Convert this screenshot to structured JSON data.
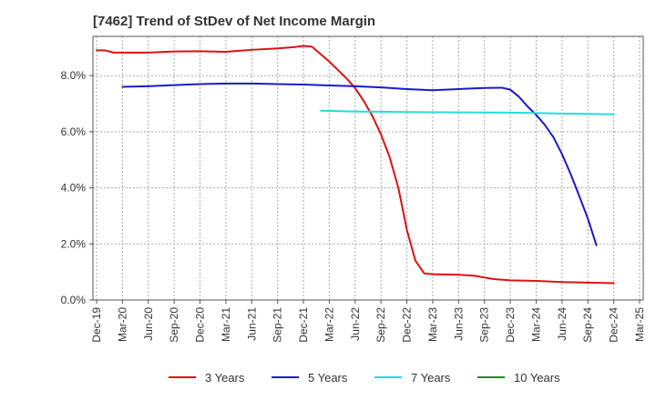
{
  "chart_data": {
    "type": "line",
    "title": "[7462]  Trend of StDev of Net Income Margin",
    "xlabel": "",
    "ylabel": "",
    "ylim": [
      0,
      9.4
    ],
    "y_ticks": [
      "0.0%",
      "2.0%",
      "4.0%",
      "6.0%",
      "8.0%"
    ],
    "y_tick_values": [
      0,
      2,
      4,
      6,
      8
    ],
    "x_tick_labels": [
      "Dec-19",
      "Mar-20",
      "Jun-20",
      "Sep-20",
      "Dec-20",
      "Mar-21",
      "Jun-21",
      "Sep-21",
      "Dec-21",
      "Mar-22",
      "Jun-22",
      "Sep-22",
      "Dec-22",
      "Mar-23",
      "Jun-23",
      "Sep-23",
      "Dec-23",
      "Mar-24",
      "Jun-24",
      "Sep-24",
      "Dec-24",
      "Mar-25"
    ],
    "grid": true,
    "legend_position": "bottom",
    "series": [
      {
        "name": "3 Years",
        "color": "#dd1111",
        "points": [
          [
            0,
            8.9
          ],
          [
            0.33,
            8.9
          ],
          [
            0.67,
            8.82
          ],
          [
            1,
            8.82
          ],
          [
            2,
            8.82
          ],
          [
            3,
            8.86
          ],
          [
            4,
            8.87
          ],
          [
            5,
            8.85
          ],
          [
            6,
            8.92
          ],
          [
            7,
            8.97
          ],
          [
            7.67,
            9.02
          ],
          [
            8,
            9.06
          ],
          [
            8.33,
            9.03
          ],
          [
            9,
            8.5
          ],
          [
            9.67,
            7.9
          ],
          [
            10,
            7.55
          ],
          [
            10.33,
            7.1
          ],
          [
            10.67,
            6.55
          ],
          [
            11,
            5.9
          ],
          [
            11.33,
            5.1
          ],
          [
            11.67,
            4.0
          ],
          [
            12,
            2.5
          ],
          [
            12.33,
            1.4
          ],
          [
            12.67,
            0.95
          ],
          [
            13,
            0.92
          ],
          [
            14,
            0.9
          ],
          [
            14.67,
            0.86
          ],
          [
            15,
            0.8
          ],
          [
            15.33,
            0.75
          ],
          [
            16,
            0.7
          ],
          [
            17,
            0.68
          ],
          [
            18,
            0.64
          ],
          [
            19,
            0.62
          ],
          [
            20,
            0.6
          ]
        ]
      },
      {
        "name": "5 Years",
        "color": "#1a1acc",
        "points": [
          [
            1,
            7.6
          ],
          [
            2,
            7.62
          ],
          [
            3,
            7.66
          ],
          [
            4,
            7.7
          ],
          [
            5,
            7.72
          ],
          [
            6,
            7.72
          ],
          [
            7,
            7.7
          ],
          [
            8,
            7.68
          ],
          [
            9,
            7.65
          ],
          [
            10,
            7.62
          ],
          [
            11,
            7.58
          ],
          [
            12,
            7.52
          ],
          [
            13,
            7.48
          ],
          [
            14,
            7.52
          ],
          [
            15,
            7.56
          ],
          [
            15.67,
            7.57
          ],
          [
            16,
            7.5
          ],
          [
            16.33,
            7.25
          ],
          [
            16.67,
            6.9
          ],
          [
            17,
            6.6
          ],
          [
            17.33,
            6.25
          ],
          [
            17.67,
            5.8
          ],
          [
            18,
            5.2
          ],
          [
            18.33,
            4.5
          ],
          [
            18.67,
            3.7
          ],
          [
            19,
            2.9
          ],
          [
            19.33,
            1.95
          ]
        ]
      },
      {
        "name": "7 Years",
        "color": "#22dddd",
        "points": [
          [
            8.67,
            6.75
          ],
          [
            10,
            6.72
          ],
          [
            12,
            6.7
          ],
          [
            14,
            6.69
          ],
          [
            16,
            6.68
          ],
          [
            18,
            6.65
          ],
          [
            20,
            6.62
          ]
        ]
      },
      {
        "name": "10 Years",
        "color": "#228822",
        "points": []
      }
    ]
  }
}
